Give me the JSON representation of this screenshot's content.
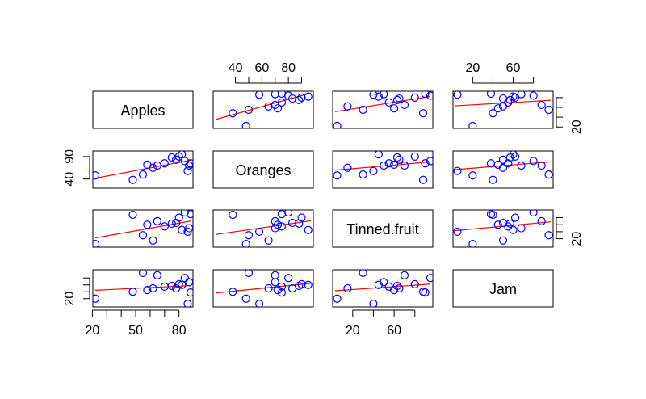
{
  "chart_data": {
    "type": "scatter",
    "subtype": "pairs-matrix",
    "variables": [
      "Apples",
      "Oranges",
      "Tinned.fruit",
      "Jam"
    ],
    "ranges": {
      "Apples": [
        22,
        88
      ],
      "Oranges": [
        25,
        97
      ],
      "Tinned.fruit": [
        3,
        95
      ],
      "Jam": [
        3,
        97
      ]
    },
    "ticks": {
      "Apples": {
        "side": "bottom",
        "values": [
          20,
          30,
          40,
          50,
          60,
          70,
          80
        ],
        "labels": [
          "20",
          "",
          "",
          "50",
          "",
          "",
          "80"
        ]
      },
      "Oranges": {
        "side": "top",
        "values": [
          40,
          50,
          60,
          70,
          80,
          90
        ],
        "labels": [
          "40",
          "",
          "60",
          "",
          "80",
          ""
        ]
      },
      "Tinned.fruit": {
        "side": "bottom",
        "values": [
          20,
          40,
          60,
          80
        ],
        "labels": [
          "20",
          "",
          "60",
          ""
        ]
      },
      "Jam": {
        "side": "top",
        "values": [
          20,
          40,
          60,
          80
        ],
        "labels": [
          "20",
          "",
          "60",
          ""
        ]
      },
      "Apples_y": {
        "side": "right",
        "values": [
          20,
          40,
          60,
          80
        ],
        "labels": [
          "20",
          "",
          "",
          ""
        ]
      },
      "Oranges_y": {
        "side": "left",
        "values": [
          40,
          60,
          90
        ],
        "labels": [
          "40",
          "",
          "90"
        ]
      },
      "Tinned.fruit_y": {
        "side": "right",
        "values": [
          20,
          40,
          60,
          80
        ],
        "labels": [
          "20",
          "",
          "",
          ""
        ]
      },
      "Jam_y": {
        "side": "left",
        "values": [
          20,
          40,
          60,
          80
        ],
        "labels": [
          "20",
          "",
          "",
          ""
        ]
      }
    },
    "observations": [
      {
        "Apples": 22,
        "Oranges": 48,
        "Tinned.fruit": 5,
        "Jam": 20
      },
      {
        "Apples": 48,
        "Oranges": 38,
        "Tinned.fruit": 88,
        "Jam": 40
      },
      {
        "Apples": 55,
        "Oranges": 50,
        "Tinned.fruit": 30,
        "Jam": 95
      },
      {
        "Apples": 58,
        "Oranges": 72,
        "Tinned.fruit": 60,
        "Jam": 45
      },
      {
        "Apples": 62,
        "Oranges": 65,
        "Tinned.fruit": 15,
        "Jam": 50
      },
      {
        "Apples": 65,
        "Oranges": 70,
        "Tinned.fruit": 70,
        "Jam": 88
      },
      {
        "Apples": 70,
        "Oranges": 75,
        "Tinned.fruit": 55,
        "Jam": 55
      },
      {
        "Apples": 75,
        "Oranges": 88,
        "Tinned.fruit": 63,
        "Jam": 57
      },
      {
        "Apples": 78,
        "Oranges": 83,
        "Tinned.fruit": 65,
        "Jam": 50
      },
      {
        "Apples": 80,
        "Oranges": 90,
        "Tinned.fruit": 80,
        "Jam": 62
      },
      {
        "Apples": 82,
        "Oranges": 95,
        "Tinned.fruit": 45,
        "Jam": 60
      },
      {
        "Apples": 84,
        "Oranges": 80,
        "Tinned.fruit": 95,
        "Jam": 80
      },
      {
        "Apples": 86,
        "Oranges": 58,
        "Tinned.fruit": 40,
        "Jam": 5
      },
      {
        "Apples": 87,
        "Oranges": 70,
        "Tinned.fruit": 50,
        "Jam": 68
      },
      {
        "Apples": 88,
        "Oranges": 75,
        "Tinned.fruit": 90,
        "Jam": 38
      }
    ],
    "point_color": "#0000ff",
    "fit_line_color": "#ff0000",
    "grid": false,
    "legend": "none"
  }
}
